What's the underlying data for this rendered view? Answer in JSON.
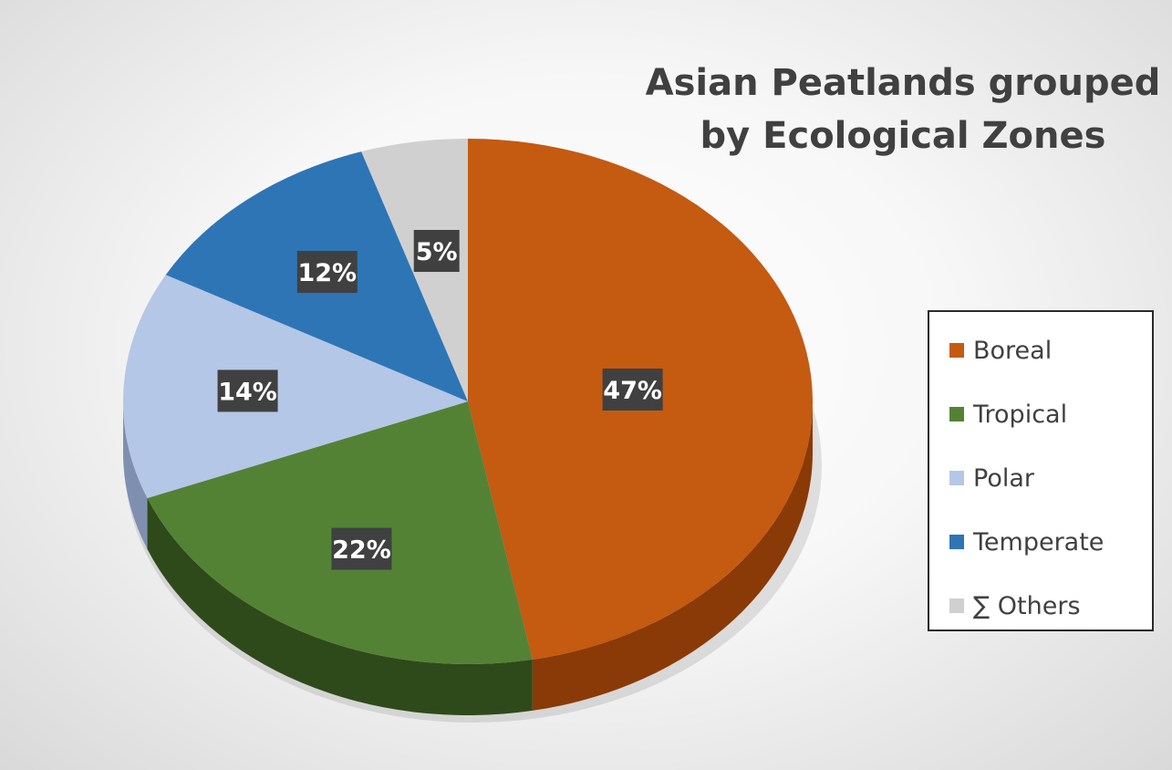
{
  "chart_data": {
    "type": "pie",
    "title_lines": [
      "Asian Peatlands grouped",
      "by Ecological Zones"
    ],
    "categories": [
      "Boreal",
      "Tropical",
      "Polar",
      "Temperate",
      "∑ Others"
    ],
    "values": [
      47,
      22,
      14,
      12,
      5
    ],
    "data_labels": [
      "47%",
      "22%",
      "14%",
      "12%",
      "5%"
    ],
    "colors": [
      "#C55A11",
      "#548235",
      "#B4C7E7",
      "#2E75B6",
      "#D0D0D0"
    ],
    "side_colors": [
      "#8A3A06",
      "#2E4A1A",
      "#7F8FB0",
      "#1E5080",
      "#999999"
    ],
    "label_background": "#404040",
    "label_color": "#ffffff",
    "legend_position": "right",
    "style": "3d-pie"
  }
}
